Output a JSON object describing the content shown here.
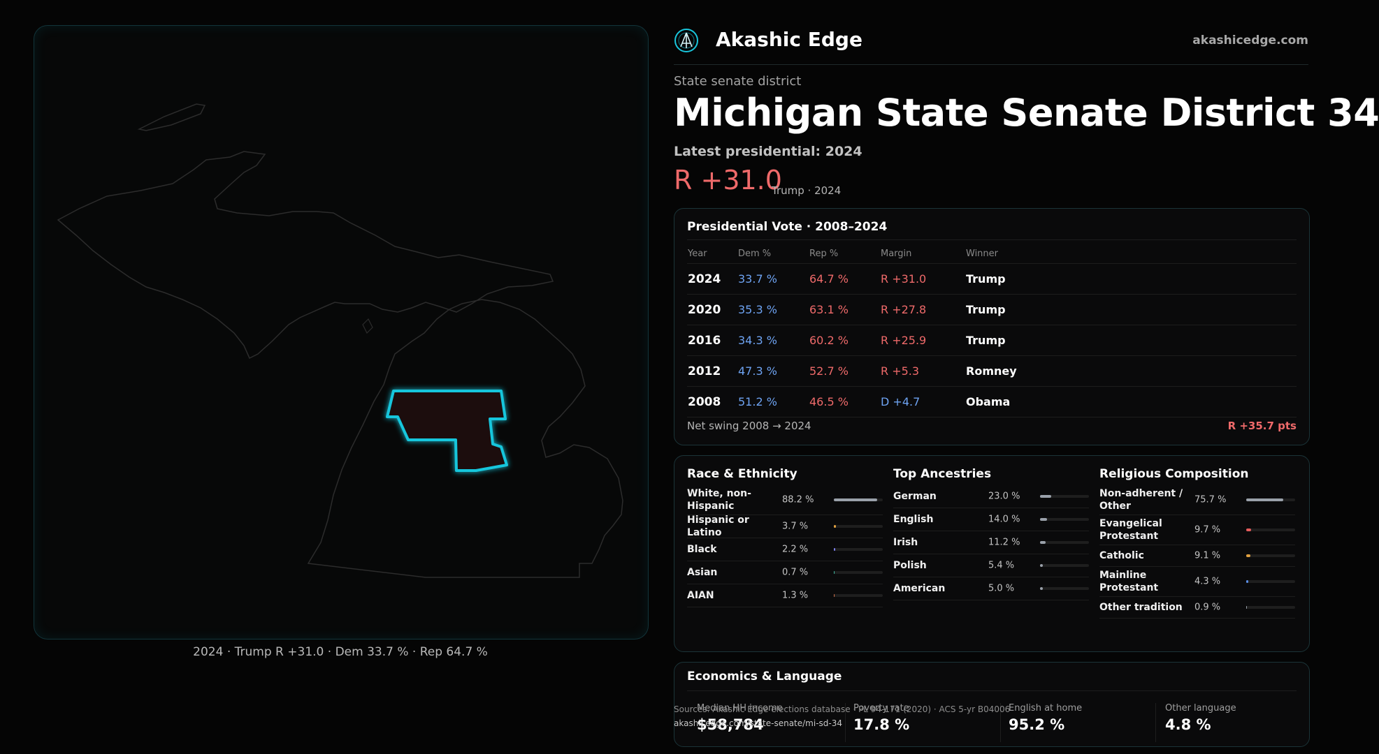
{
  "colors": {
    "rep": "#ef6a6a",
    "dem": "#6ea3f2",
    "accent": "#19c6dc",
    "background": "#050505"
  },
  "header": {
    "logo_icon": "akashic-edge-logo",
    "brand": "Akashic Edge",
    "domain": "akashicedge.com"
  },
  "district": {
    "type_label": "State senate district",
    "title": "Michigan State Senate District 34",
    "latest_label": "Latest presidential: 2024",
    "margin": "R +31.0",
    "margin_sub": "Trump · 2024"
  },
  "map": {
    "caption": "2024 · Trump R +31.0 · Dem 33.7 % · Rep 64.7 %"
  },
  "presidential": {
    "title": "Presidential Vote · 2008–2024",
    "columns": [
      "Year",
      "Dem %",
      "Rep %",
      "Margin",
      "Winner"
    ],
    "rows": [
      {
        "year": "2024",
        "dem": "33.7 %",
        "rep": "64.7 %",
        "margin": "R +31.0",
        "party": "R",
        "winner": "Trump"
      },
      {
        "year": "2020",
        "dem": "35.3 %",
        "rep": "63.1 %",
        "margin": "R +27.8",
        "party": "R",
        "winner": "Trump"
      },
      {
        "year": "2016",
        "dem": "34.3 %",
        "rep": "60.2 %",
        "margin": "R +25.9",
        "party": "R",
        "winner": "Trump"
      },
      {
        "year": "2012",
        "dem": "47.3 %",
        "rep": "52.7 %",
        "margin": "R +5.3",
        "party": "R",
        "winner": "Romney"
      },
      {
        "year": "2008",
        "dem": "51.2 %",
        "rep": "46.5 %",
        "margin": "D +4.7",
        "party": "D",
        "winner": "Obama"
      }
    ],
    "swing_label": "Net swing 2008 → 2024",
    "swing_value": "R +35.7 pts"
  },
  "race": {
    "title": "Race & Ethnicity",
    "items": [
      {
        "label": "White, non-Hispanic",
        "value": "88.2 %",
        "pct": 88.2,
        "color": "#9aa1aa"
      },
      {
        "label": "Hispanic or Latino",
        "value": "3.7 %",
        "pct": 3.7,
        "color": "#e0a040"
      },
      {
        "label": "Black",
        "value": "2.2 %",
        "pct": 2.2,
        "color": "#7d7ff0"
      },
      {
        "label": "Asian",
        "value": "0.7 %",
        "pct": 0.7,
        "color": "#3fb8a0"
      },
      {
        "label": "AIAN",
        "value": "1.3 %",
        "pct": 1.3,
        "color": "#d0704a"
      }
    ]
  },
  "ancestries": {
    "title": "Top Ancestries",
    "items": [
      {
        "label": "German",
        "value": "23.0 %",
        "pct": 23.0,
        "color": "#9aa1aa"
      },
      {
        "label": "English",
        "value": "14.0 %",
        "pct": 14.0,
        "color": "#9aa1aa"
      },
      {
        "label": "Irish",
        "value": "11.2 %",
        "pct": 11.2,
        "color": "#9aa1aa"
      },
      {
        "label": "Polish",
        "value": "5.4 %",
        "pct": 5.4,
        "color": "#9aa1aa"
      },
      {
        "label": "American",
        "value": "5.0 %",
        "pct": 5.0,
        "color": "#9aa1aa"
      }
    ]
  },
  "religion": {
    "title": "Religious Composition",
    "items": [
      {
        "label": "Non-adherent / Other",
        "value": "75.7 %",
        "pct": 75.7,
        "color": "#9aa1aa"
      },
      {
        "label": "Evangelical Protestant",
        "value": "9.7 %",
        "pct": 9.7,
        "color": "#e55c5c"
      },
      {
        "label": "Catholic",
        "value": "9.1 %",
        "pct": 9.1,
        "color": "#e0a040"
      },
      {
        "label": "Mainline Protestant",
        "value": "4.3 %",
        "pct": 4.3,
        "color": "#5a8ee8"
      },
      {
        "label": "Other tradition",
        "value": "0.9 %",
        "pct": 0.9,
        "color": "#9aa1aa"
      }
    ]
  },
  "economics": {
    "title": "Economics & Language",
    "stats": [
      {
        "label": "Median HH income",
        "value": "$58,784"
      },
      {
        "label": "Poverty rate",
        "value": "17.8 %"
      },
      {
        "label": "English at home",
        "value": "95.2 %"
      },
      {
        "label": "Other language",
        "value": "4.8 %"
      }
    ]
  },
  "source": {
    "line": "Sources: Akashic Edge elections database · PL 94-171 (2020) · ACS 5-yr B04006",
    "url": "akashicedge.com/state-senate/mi-sd-34"
  }
}
